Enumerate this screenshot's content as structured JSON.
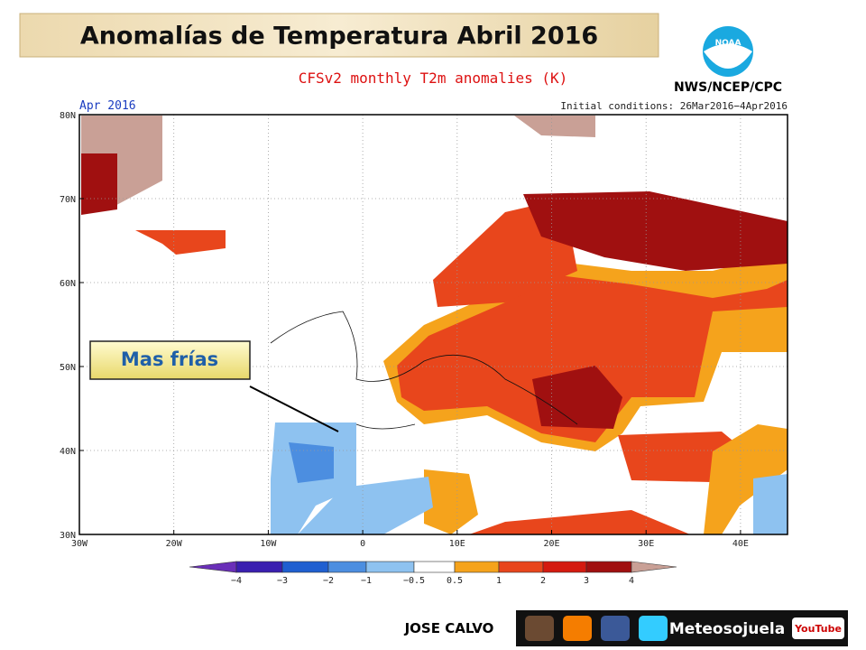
{
  "header": {
    "title": "Anomalías de Temperatura Abril 2016",
    "logo_text": "NOAA",
    "agency": "NWS/NCEP/CPC"
  },
  "map": {
    "subtitle": "CFSv2 monthly T2m anomalies (K)",
    "period": "Apr 2016",
    "initial_conditions": "Initial conditions: 26Mar2016−4Apr2016",
    "lat_labels": [
      "80N",
      "70N",
      "60N",
      "50N",
      "40N",
      "30N"
    ],
    "lon_labels": [
      "30W",
      "20W",
      "10W",
      "0",
      "10E",
      "20E",
      "30E",
      "40E"
    ],
    "callout": "Mas frías",
    "colorbar_labels": [
      "−4",
      "−3",
      "−2",
      "−1",
      "−0.5",
      "0.5",
      "1",
      "2",
      "3",
      "4"
    ]
  },
  "footer": {
    "author": "JOSE CALVO",
    "brand": "Meteosojuela",
    "youtube": "YouTube"
  }
}
